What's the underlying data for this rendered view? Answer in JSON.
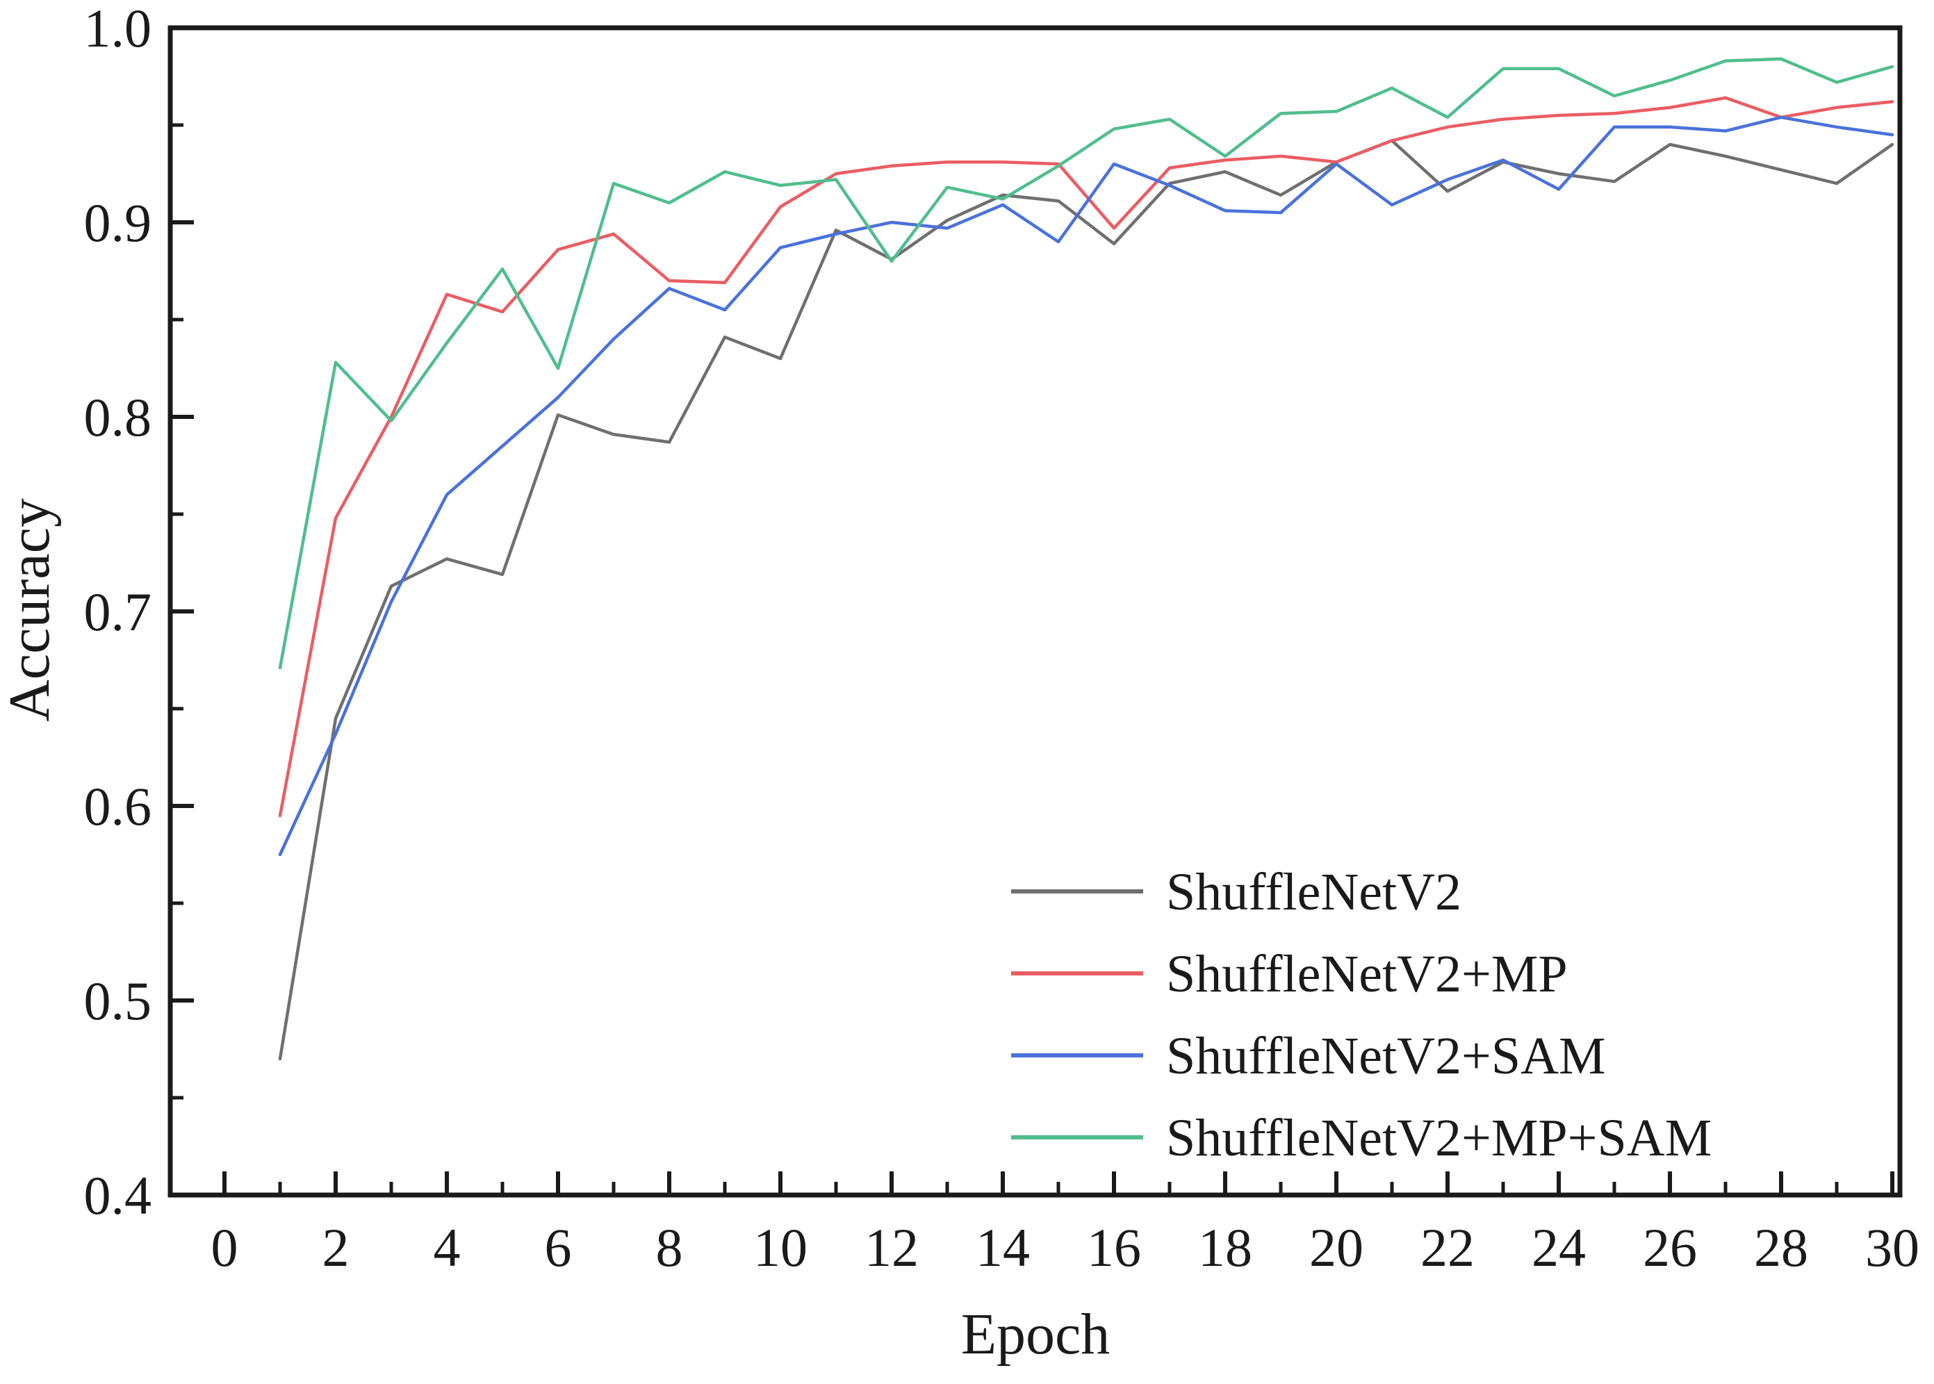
{
  "figure": {
    "background": "#ffffff",
    "frame_color": "#1a1a1a"
  },
  "chart_data": {
    "type": "line",
    "title": "",
    "xlabel": "Epoch",
    "ylabel": "Accuracy",
    "xlim": [
      0,
      30
    ],
    "ylim": [
      0.4,
      1.0
    ],
    "x_tick_step": 2,
    "x_minor_tick_step": 1,
    "y_tick_step": 0.1,
    "y_minor_tick_step": 0.05,
    "grid": false,
    "legend_position": "lower right",
    "x": [
      1,
      2,
      3,
      4,
      5,
      6,
      7,
      8,
      9,
      10,
      11,
      12,
      13,
      14,
      15,
      16,
      17,
      18,
      19,
      20,
      21,
      22,
      23,
      24,
      25,
      26,
      27,
      28,
      29,
      30
    ],
    "series": [
      {
        "name": "ShuffleNetV2",
        "color": "#6f6f6f",
        "values": [
          0.47,
          0.645,
          0.713,
          0.727,
          0.719,
          0.801,
          0.791,
          0.787,
          0.841,
          0.83,
          0.896,
          0.881,
          0.901,
          0.914,
          0.911,
          0.889,
          0.92,
          0.926,
          0.914,
          0.931,
          0.942,
          0.916,
          0.931,
          0.925,
          0.921,
          0.94,
          0.934,
          0.927,
          0.92,
          0.94
        ]
      },
      {
        "name": "ShuffleNetV2+MP",
        "color": "#ea5d63",
        "values": [
          0.595,
          0.748,
          0.8,
          0.863,
          0.854,
          0.886,
          0.894,
          0.87,
          0.869,
          0.908,
          0.925,
          0.929,
          0.931,
          0.931,
          0.93,
          0.897,
          0.928,
          0.932,
          0.934,
          0.931,
          0.942,
          0.949,
          0.953,
          0.955,
          0.956,
          0.959,
          0.964,
          0.954,
          0.959,
          0.962
        ]
      },
      {
        "name": "ShuffleNetV2+SAM",
        "color": "#4a72dc",
        "values": [
          0.575,
          0.637,
          0.705,
          0.76,
          0.785,
          0.81,
          0.84,
          0.866,
          0.855,
          0.887,
          0.894,
          0.9,
          0.897,
          0.909,
          0.89,
          0.93,
          0.919,
          0.906,
          0.905,
          0.93,
          0.909,
          0.922,
          0.932,
          0.917,
          0.949,
          0.949,
          0.947,
          0.954,
          0.949,
          0.945
        ]
      },
      {
        "name": "ShuffleNetV2+MP+SAM",
        "color": "#4fbe8d",
        "values": [
          0.671,
          0.828,
          0.798,
          0.838,
          0.876,
          0.825,
          0.92,
          0.91,
          0.926,
          0.919,
          0.922,
          0.88,
          0.918,
          0.912,
          0.929,
          0.948,
          0.953,
          0.934,
          0.956,
          0.957,
          0.969,
          0.954,
          0.979,
          0.979,
          0.965,
          0.973,
          0.983,
          0.984,
          0.972,
          0.98
        ]
      }
    ]
  },
  "legend": {
    "entries": [
      {
        "label": "ShuffleNetV2",
        "color": "#6f6f6f"
      },
      {
        "label": "ShuffleNetV2+MP",
        "color": "#ea5d63"
      },
      {
        "label": "ShuffleNetV2+SAM",
        "color": "#4a72dc"
      },
      {
        "label": "ShuffleNetV2+MP+SAM",
        "color": "#4fbe8d"
      }
    ]
  }
}
